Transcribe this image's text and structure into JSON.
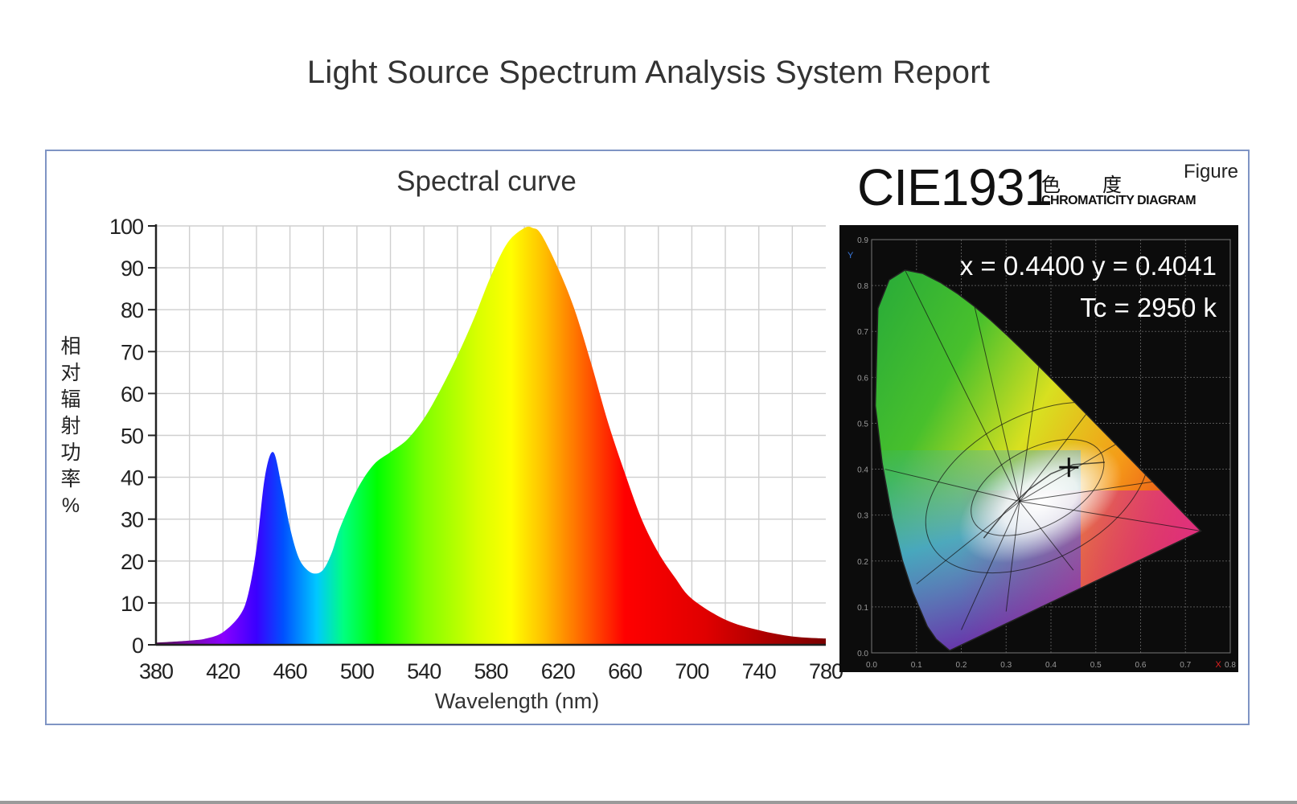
{
  "report": {
    "title": "Light Source Spectrum Analysis System Report"
  },
  "chart_data": [
    {
      "type": "area",
      "title": "Spectral curve",
      "xlabel": "Wavelength (nm)",
      "ylabel_chars": [
        "相",
        "对",
        "辐",
        "射",
        "功",
        "率",
        "%"
      ],
      "xlim": [
        380,
        780
      ],
      "ylim": [
        0,
        100
      ],
      "x_ticks": [
        380,
        420,
        460,
        500,
        540,
        580,
        620,
        660,
        700,
        740,
        780
      ],
      "y_ticks": [
        0,
        10,
        20,
        30,
        40,
        50,
        60,
        70,
        80,
        90,
        100
      ],
      "grid": true,
      "fill": "visible-spectrum gradient",
      "series": [
        {
          "x": [
            380,
            400,
            410,
            420,
            430,
            435,
            440,
            445,
            450,
            455,
            460,
            465,
            470,
            475,
            480,
            485,
            490,
            500,
            510,
            520,
            530,
            540,
            550,
            560,
            570,
            580,
            590,
            600,
            605,
            610,
            620,
            630,
            640,
            650,
            660,
            670,
            680,
            690,
            700,
            720,
            740,
            760,
            780
          ],
          "values": [
            0.5,
            1,
            1.5,
            3,
            7,
            12,
            23,
            40,
            46,
            38,
            28,
            21,
            18,
            17,
            18,
            22,
            28,
            37,
            43,
            46,
            49,
            54,
            61,
            69,
            78,
            88,
            96,
            99.5,
            99.5,
            98,
            90,
            80,
            67,
            53,
            41,
            30,
            22,
            16,
            11,
            6,
            3.5,
            2,
            1.5
          ]
        }
      ]
    },
    {
      "type": "scatter",
      "title": "CIE1931",
      "title_zh": "色度",
      "subtitle": "CHROMATICITY DIAGRAM",
      "label": "Figure",
      "xlim": [
        0,
        0.8
      ],
      "ylim": [
        0,
        0.9
      ],
      "x_ticks": [
        "0.0",
        "0.1",
        "0.2",
        "0.3",
        "0.4",
        "0.5",
        "0.6",
        "0.7",
        "0.8"
      ],
      "y_ticks": [
        "0.0",
        "0.1",
        "0.2",
        "0.3",
        "0.4",
        "0.5",
        "0.6",
        "0.7",
        "0.8",
        "0.9"
      ],
      "x_axis_letter": "X",
      "y_axis_letter": "Y",
      "readout_xy": "x = 0.4400  y = 0.4041",
      "readout_tc": "Tc = 2950 k",
      "point": {
        "x": 0.44,
        "y": 0.4041
      },
      "background": "#0c0c0c"
    }
  ]
}
